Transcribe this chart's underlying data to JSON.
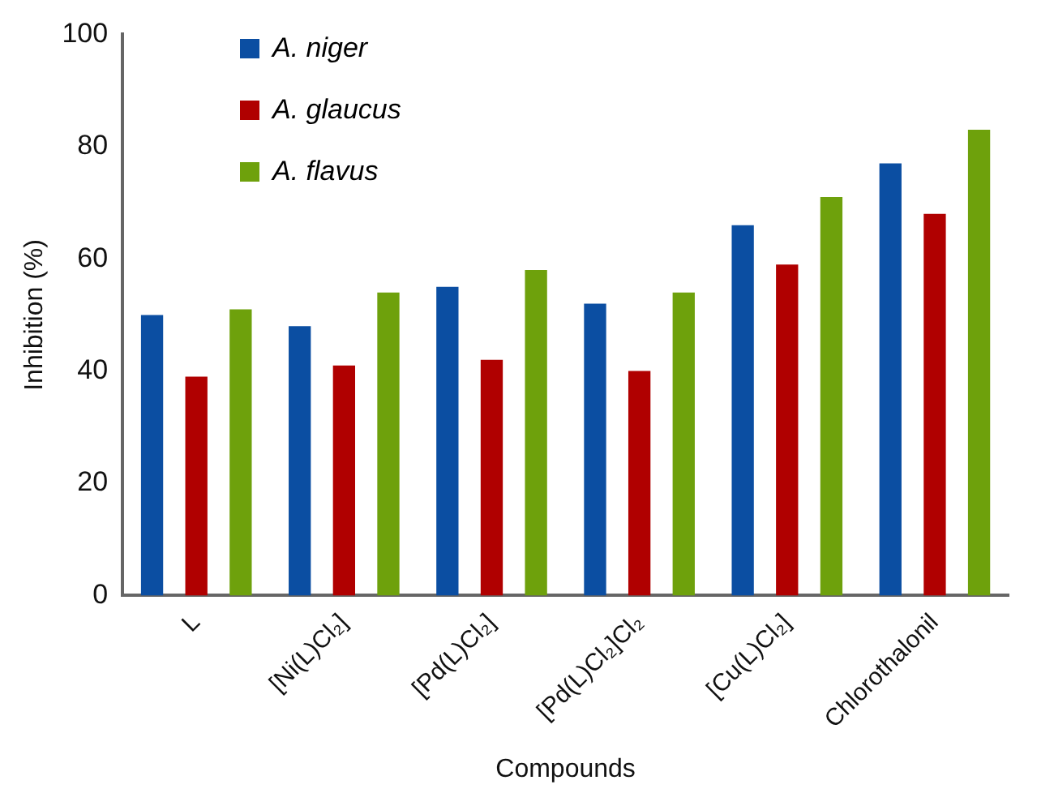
{
  "chart_data": {
    "type": "bar",
    "xlabel": "Compounds",
    "ylabel": "Inhibition (%)",
    "categories": [
      "L",
      "[Ni(L)Cl₂]",
      "[Pd(L)Cl₂]",
      "[Pd(L)Cl₂]Cl₂",
      "[Cu(L)Cl₂]",
      "Chlorothalonil"
    ],
    "series": [
      {
        "name": "A. niger",
        "color": "#0b4ea2",
        "values": [
          50,
          48,
          55,
          52,
          66,
          77
        ]
      },
      {
        "name": "A. glaucus",
        "color": "#b00000",
        "values": [
          39,
          41,
          42,
          40,
          59,
          68
        ]
      },
      {
        "name": "A. flavus",
        "color": "#6ea10c",
        "values": [
          51,
          54,
          58,
          54,
          71,
          83
        ]
      }
    ],
    "ylim": [
      0,
      100
    ],
    "yticks": [
      0,
      20,
      40,
      60,
      80,
      100
    ],
    "grid": false,
    "legend": "top left"
  }
}
